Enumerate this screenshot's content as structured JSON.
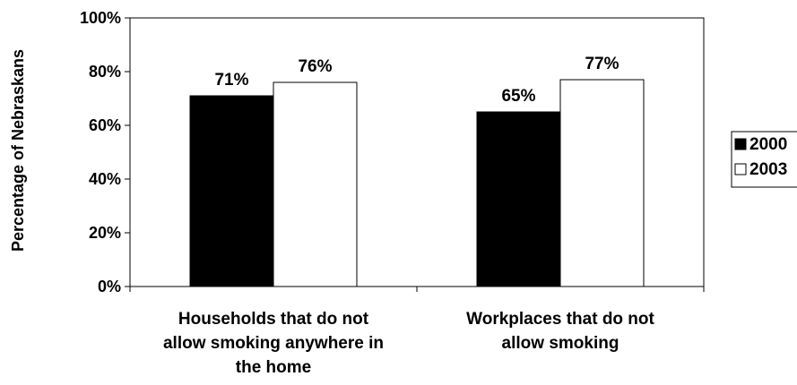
{
  "chart_data": {
    "type": "bar",
    "title": "",
    "xlabel": "",
    "ylabel": "Percentage of Nebraskans",
    "ylim": [
      0,
      100
    ],
    "yticks": [
      "0%",
      "20%",
      "40%",
      "60%",
      "80%",
      "100%"
    ],
    "categories": [
      [
        "Households that do not",
        "allow smoking anywhere in",
        "the home"
      ],
      [
        "Workplaces that do not",
        "allow smoking"
      ]
    ],
    "series": [
      {
        "name": "2000",
        "values": [
          71,
          65
        ],
        "labels": [
          "71%",
          "65%"
        ],
        "color": "#000000"
      },
      {
        "name": "2003",
        "values": [
          76,
          77
        ],
        "labels": [
          "76%",
          "77%"
        ],
        "color": "#ffffff"
      }
    ],
    "legend_position": "right",
    "grid": false
  }
}
